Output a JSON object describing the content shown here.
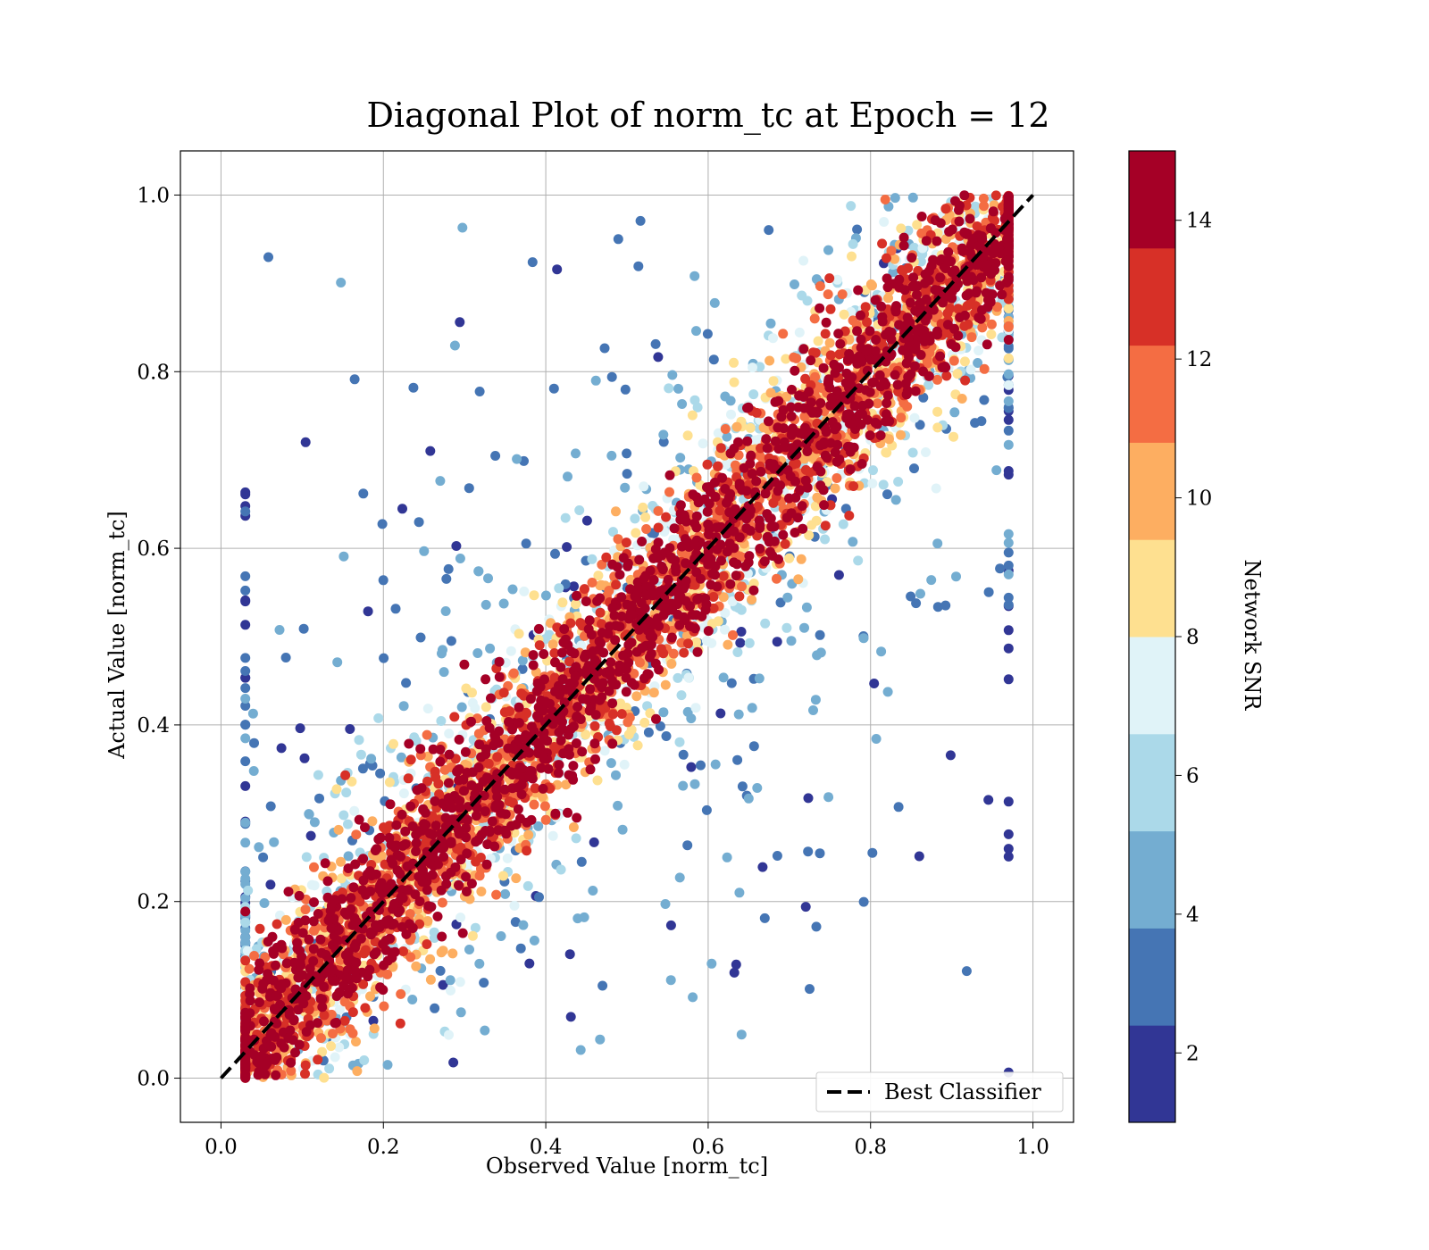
{
  "chart_data": {
    "type": "scatter",
    "title": "Diagonal Plot of norm_tc at Epoch = 12",
    "xlabel": "Observed Value [norm_tc]",
    "ylabel": "Actual Value [norm_tc]",
    "xlim": [
      -0.05,
      1.05
    ],
    "ylim": [
      -0.05,
      1.05
    ],
    "xticks": [
      "0.0",
      "0.2",
      "0.4",
      "0.6",
      "0.8",
      "1.0"
    ],
    "xtick_values": [
      0.0,
      0.2,
      0.4,
      0.6,
      0.8,
      1.0
    ],
    "yticks": [
      "0.0",
      "0.2",
      "0.4",
      "0.6",
      "0.8",
      "1.0"
    ],
    "ytick_values": [
      0.0,
      0.2,
      0.4,
      0.6,
      0.8,
      1.0
    ],
    "grid": true,
    "reference_line": {
      "name": "Best Classifier",
      "x": [
        0.0,
        1.0
      ],
      "y": [
        0.0,
        1.0
      ],
      "style": "dashed",
      "color": "#000000"
    },
    "legend": {
      "placement": "lower-right",
      "entries": [
        "Best Classifier"
      ]
    },
    "point_color_variable": "Network SNR",
    "data_extent": {
      "observed_min": 0.03,
      "observed_max": 0.97,
      "actual_min": 0.0,
      "actual_max": 1.0
    },
    "colorbar": {
      "label": "Network SNR",
      "range": [
        1,
        15
      ],
      "ticks": [
        "2",
        "4",
        "6",
        "8",
        "10",
        "12",
        "14"
      ],
      "tick_values": [
        2,
        4,
        6,
        8,
        10,
        12,
        14
      ],
      "colors": [
        "#313695",
        "#4575b4",
        "#74add1",
        "#abd9e9",
        "#e0f3f8",
        "#fee090",
        "#fdae61",
        "#f46d43",
        "#d73027",
        "#a50026"
      ]
    }
  }
}
